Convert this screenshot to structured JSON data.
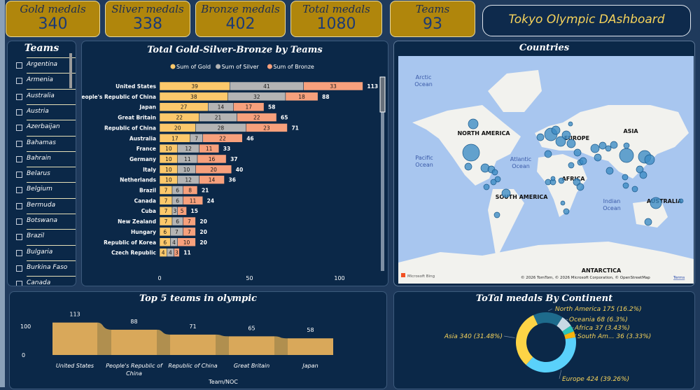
{
  "kpis": [
    {
      "label": "Gold medals",
      "value": "340"
    },
    {
      "label": "Sliver medals",
      "value": "338"
    },
    {
      "label": "Bronze medals",
      "value": "402"
    },
    {
      "label": "Total medals",
      "value": "1080"
    },
    {
      "label": "Teams",
      "value": "93"
    }
  ],
  "dashboard_title": "Tokyo Olympic DAshboard",
  "teams_slicer": {
    "title": "Teams",
    "items": [
      "Argentina",
      "Armenia",
      "Australia",
      "Austria",
      "Azerbaijan",
      "Bahamas",
      "Bahrain",
      "Belarus",
      "Belgium",
      "Bermuda",
      "Botswana",
      "Brazil",
      "Bulgaria",
      "Burkina Faso",
      "Canada"
    ]
  },
  "colors": {
    "gold": "#fcc86b",
    "silver": "#b4b4b4",
    "bronze": "#f7a07c",
    "kpi": "#b0860c",
    "panel": "#0b2848",
    "title": "#f6d35b",
    "area": "#d9a85a",
    "donut": [
      "#1e6b8c",
      "#c8d8e4",
      "#2ec4b6",
      "#f7b30c",
      "#5ad1fb",
      "#fdd446"
    ]
  },
  "chart_data": [
    {
      "type": "bar",
      "orientation": "horizontal-stacked",
      "title": "Total Gold-Silver-Bronze by Teams",
      "legend": "top",
      "categories": [
        "United States",
        "People's Republic of China",
        "Japan",
        "Great Britain",
        "Republic of China",
        "Australia",
        "France",
        "Germany",
        "Italy",
        "Netherlands",
        "Brazil",
        "Canada",
        "Cuba",
        "New Zealand",
        "Hungary",
        "Republic of Korea",
        "Czech Republic"
      ],
      "series": [
        {
          "name": "Sum of Gold",
          "values": [
            39,
            38,
            27,
            22,
            20,
            17,
            10,
            10,
            10,
            10,
            7,
            7,
            7,
            7,
            6,
            6,
            4
          ]
        },
        {
          "name": "Sum of Silver",
          "values": [
            41,
            32,
            14,
            21,
            28,
            7,
            12,
            11,
            10,
            12,
            6,
            6,
            3,
            6,
            7,
            4,
            4
          ]
        },
        {
          "name": "Sum of Bronze",
          "values": [
            33,
            18,
            17,
            22,
            23,
            22,
            11,
            16,
            20,
            14,
            8,
            11,
            5,
            7,
            7,
            10,
            3
          ]
        }
      ],
      "totals": [
        113,
        88,
        58,
        65,
        71,
        46,
        33,
        37,
        40,
        36,
        21,
        24,
        15,
        20,
        20,
        20,
        11
      ],
      "xticks": [
        "0",
        "50",
        "100"
      ],
      "xlim": [
        0,
        118
      ]
    },
    {
      "type": "area",
      "title": "Top 5 teams  in olympic",
      "xlabel": "Team/NOC",
      "categories": [
        "United States",
        "People's Republic of China",
        "Republic of China",
        "Great Britain",
        "Japan"
      ],
      "values": [
        113,
        88,
        71,
        65,
        58
      ],
      "yticks": [
        "100",
        "0"
      ],
      "ylim": [
        0,
        120
      ]
    },
    {
      "type": "pie",
      "title": "ToTal medals By Continent",
      "slices": [
        {
          "label": "North America 175 (16.2%)",
          "value": 175
        },
        {
          "label": "Oceania 68 (6.3%)",
          "value": 68
        },
        {
          "label": "Africa 37 (3.43%)",
          "value": 37
        },
        {
          "label": "South Am... 36 (3.33%)",
          "value": 36
        },
        {
          "label": "Europe 424 (39.26%)",
          "value": 424
        },
        {
          "label": "Asia 340 (31.48%)",
          "value": 340
        }
      ]
    }
  ],
  "map": {
    "title": "Countries",
    "labels": {
      "arctic": "Arctic Ocean",
      "pacific": "Pacific Ocean",
      "atlantic": "Atlantic Ocean",
      "indian": "Indian Ocean",
      "na": "NORTH AMERICA",
      "sa": "SOUTH AMERICA",
      "europe": "EUROPE",
      "africa": "AFRICA",
      "asia": "ASIA",
      "australia": "AUSTRALIA",
      "antarctica": "ANTARCTICA"
    },
    "attribution": "© 2026 TomTom, © 2026 Microsoft Corporation, © OpenStreetMap",
    "terms": "Terms",
    "brand": "Microsoft Bing"
  }
}
